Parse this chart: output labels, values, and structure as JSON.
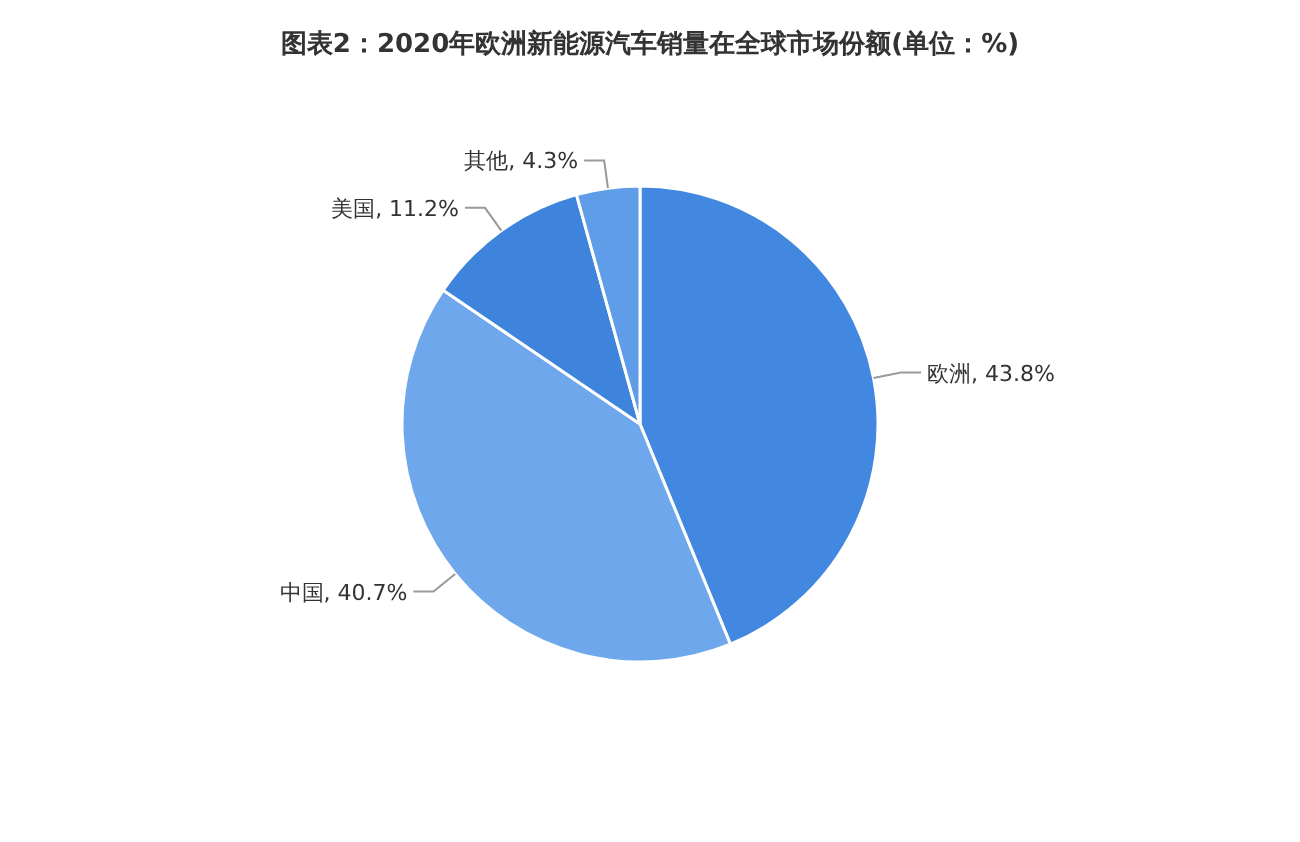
{
  "chart_data": {
    "type": "pie",
    "title": "图表2：2020年欧洲新能源汽车销量在全球市场份额(单位：%)",
    "categories": [
      "欧洲",
      "中国",
      "美国",
      "其他"
    ],
    "values": [
      43.8,
      40.7,
      11.2,
      4.3
    ],
    "value_labels": [
      "43.8%",
      "40.7%",
      "11.2%",
      "4.3%"
    ],
    "colors": [
      "#4287e0",
      "#6ea7ec",
      "#3f84dc",
      "#5f9de8"
    ]
  }
}
